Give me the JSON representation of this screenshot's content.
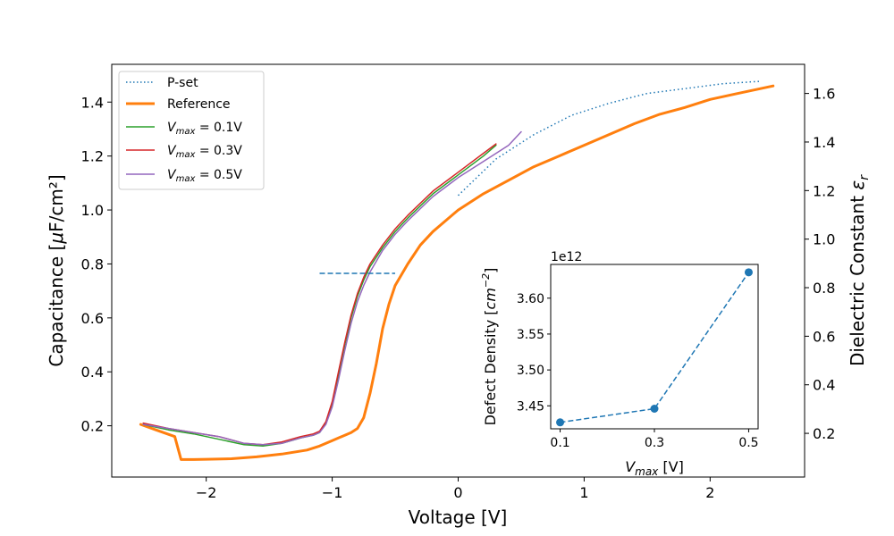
{
  "chart_data": [
    {
      "type": "line",
      "xlabel": "Voltage [V]",
      "ylabel": "Capacitance [$\\mu$F/cm²]",
      "ylabel_right": "Dielectric Constant $\\varepsilon_r$",
      "xlim": [
        -2.75,
        2.75
      ],
      "ylim": [
        0.01,
        1.54
      ],
      "ylim_right": [
        0.02,
        1.72
      ],
      "xticks": [
        -2,
        -1,
        0,
        1,
        2
      ],
      "xtick_labels": [
        "−2",
        "−1",
        "0",
        "1",
        "2"
      ],
      "yticks": [
        0.2,
        0.4,
        0.6,
        0.8,
        1.0,
        1.2,
        1.4
      ],
      "ytick_labels": [
        "0.2",
        "0.4",
        "0.6",
        "0.8",
        "1.0",
        "1.2",
        "1.4"
      ],
      "yticks_right": [
        0.2,
        0.4,
        0.6,
        0.8,
        1.0,
        1.2,
        1.4,
        1.6
      ],
      "ytick_labels_right": [
        "0.2",
        "0.4",
        "0.6",
        "0.8",
        "1.0",
        "1.2",
        "1.4",
        "1.6"
      ],
      "legend_position": "upper-left",
      "series": [
        {
          "name": "P-set",
          "axis": "right",
          "color": "#1f77b4",
          "style": "dotted",
          "width": 1.5,
          "x": [
            0,
            0.3,
            0.6,
            0.9,
            1.2,
            1.5,
            1.8,
            2.1,
            2.4
          ],
          "y": [
            1.18,
            1.33,
            1.43,
            1.51,
            1.56,
            1.6,
            1.62,
            1.64,
            1.65
          ]
        },
        {
          "name": "Reference",
          "axis": "left",
          "color": "#ff7f0e",
          "style": "solid",
          "width": 3,
          "x": [
            -2.52,
            -2.4,
            -2.25,
            -2.2,
            -2.1,
            -2.0,
            -1.8,
            -1.6,
            -1.4,
            -1.2,
            -1.1,
            -1.0,
            -0.9,
            -0.85,
            -0.8,
            -0.75,
            -0.7,
            -0.65,
            -0.6,
            -0.55,
            -0.5,
            -0.4,
            -0.3,
            -0.2,
            -0.1,
            0.0,
            0.2,
            0.4,
            0.6,
            0.8,
            1.0,
            1.2,
            1.4,
            1.6,
            1.8,
            2.0,
            2.2,
            2.4,
            2.5
          ],
          "y": [
            0.205,
            0.185,
            0.16,
            0.075,
            0.075,
            0.076,
            0.078,
            0.085,
            0.095,
            0.11,
            0.125,
            0.145,
            0.165,
            0.175,
            0.19,
            0.23,
            0.32,
            0.43,
            0.56,
            0.65,
            0.72,
            0.8,
            0.87,
            0.92,
            0.96,
            1.0,
            1.06,
            1.11,
            1.16,
            1.2,
            1.24,
            1.28,
            1.32,
            1.355,
            1.38,
            1.41,
            1.43,
            1.45,
            1.46
          ]
        },
        {
          "name": "$V_{max}$ = 0.1V",
          "axis": "left",
          "color": "#2ca02c",
          "style": "solid",
          "width": 1.5,
          "x": [
            -2.5,
            -2.3,
            -2.1,
            -1.9,
            -1.7,
            -1.55,
            -1.4,
            -1.25,
            -1.15,
            -1.1,
            -1.05,
            -1.0,
            -0.95,
            -0.9,
            -0.85,
            -0.8,
            -0.75,
            -0.7,
            -0.6,
            -0.5,
            -0.4,
            -0.2,
            0.0,
            0.2,
            0.3
          ],
          "y": [
            0.205,
            0.185,
            0.17,
            0.15,
            0.13,
            0.125,
            0.135,
            0.155,
            0.165,
            0.175,
            0.21,
            0.28,
            0.39,
            0.5,
            0.6,
            0.68,
            0.74,
            0.79,
            0.86,
            0.92,
            0.97,
            1.06,
            1.13,
            1.2,
            1.24
          ]
        },
        {
          "name": "$V_{max}$ = 0.3V",
          "axis": "left",
          "color": "#d62728",
          "style": "solid",
          "width": 1.5,
          "x": [
            -2.5,
            -2.3,
            -2.1,
            -1.9,
            -1.7,
            -1.55,
            -1.4,
            -1.25,
            -1.15,
            -1.1,
            -1.05,
            -1.0,
            -0.95,
            -0.9,
            -0.85,
            -0.8,
            -0.75,
            -0.7,
            -0.6,
            -0.5,
            -0.4,
            -0.2,
            0.0,
            0.2,
            0.3
          ],
          "y": [
            0.21,
            0.19,
            0.175,
            0.16,
            0.135,
            0.13,
            0.14,
            0.16,
            0.17,
            0.18,
            0.215,
            0.29,
            0.4,
            0.51,
            0.61,
            0.69,
            0.75,
            0.8,
            0.87,
            0.93,
            0.98,
            1.07,
            1.14,
            1.21,
            1.245
          ]
        },
        {
          "name": "$V_{max}$ = 0.5V",
          "axis": "left",
          "color": "#9467bd",
          "style": "solid",
          "width": 1.5,
          "x": [
            -2.5,
            -2.3,
            -2.1,
            -1.9,
            -1.7,
            -1.55,
            -1.4,
            -1.25,
            -1.15,
            -1.1,
            -1.05,
            -1.0,
            -0.95,
            -0.9,
            -0.85,
            -0.8,
            -0.75,
            -0.7,
            -0.6,
            -0.5,
            -0.4,
            -0.2,
            0.0,
            0.2,
            0.4,
            0.5
          ],
          "y": [
            0.205,
            0.19,
            0.175,
            0.16,
            0.135,
            0.13,
            0.135,
            0.155,
            0.165,
            0.175,
            0.205,
            0.27,
            0.37,
            0.48,
            0.58,
            0.66,
            0.72,
            0.77,
            0.85,
            0.91,
            0.96,
            1.05,
            1.12,
            1.18,
            1.24,
            1.29
          ]
        },
        {
          "name": "",
          "axis": "left",
          "color": "#1f77b4",
          "style": "dashed",
          "width": 1.5,
          "x": [
            -1.1,
            -0.5
          ],
          "y": [
            0.765,
            0.765
          ]
        }
      ]
    },
    {
      "type": "line",
      "xlabel": "$V_{max}$ [V]",
      "ylabel": "Defect Density [$cm^{-2}$]",
      "offset_text": "1e12",
      "xlim": [
        0.08,
        0.52
      ],
      "ylim": [
        3.418,
        3.647
      ],
      "xticks": [
        0.1,
        0.3,
        0.5
      ],
      "xtick_labels": [
        "0.1",
        "0.3",
        "0.5"
      ],
      "yticks": [
        3.45,
        3.5,
        3.55,
        3.6
      ],
      "ytick_labels": [
        "3.45",
        "3.50",
        "3.55",
        "3.60"
      ],
      "series": [
        {
          "name": "",
          "color": "#1f77b4",
          "style": "dashed",
          "marker": "circle",
          "x": [
            0.1,
            0.3,
            0.5
          ],
          "y": [
            3.427,
            3.446,
            3.636
          ]
        }
      ]
    }
  ]
}
